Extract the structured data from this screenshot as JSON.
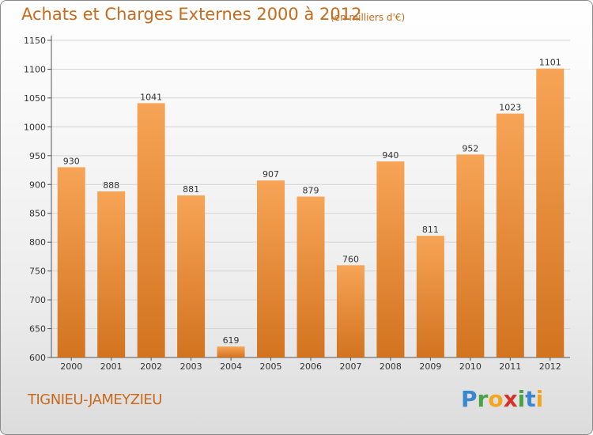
{
  "header": {
    "title": "Achats et Charges Externes 2000 à 2012",
    "unit": "(en milliers d'€)"
  },
  "footer": {
    "town": "TIGNIEU-JAMEYZIEU",
    "logo": [
      "P",
      "r",
      "o",
      "x",
      "i",
      "t",
      "i"
    ]
  },
  "colors": {
    "bar_top": "#f7a456",
    "bar_bottom": "#d2731f",
    "title": "#c86a1c"
  },
  "chart_data": {
    "type": "bar",
    "title": "Achats et Charges Externes 2000 à 2012",
    "subtitle": "(en milliers d'€)",
    "categories": [
      "2000",
      "2001",
      "2002",
      "2003",
      "2004",
      "2005",
      "2006",
      "2007",
      "2008",
      "2009",
      "2010",
      "2011",
      "2012"
    ],
    "values": [
      930,
      888,
      1041,
      881,
      619,
      907,
      879,
      760,
      940,
      811,
      952,
      1023,
      1101
    ],
    "ylim": [
      600,
      1150
    ],
    "yticks": [
      600,
      650,
      700,
      750,
      800,
      850,
      900,
      950,
      1000,
      1050,
      1100,
      1150
    ],
    "grid": true
  }
}
